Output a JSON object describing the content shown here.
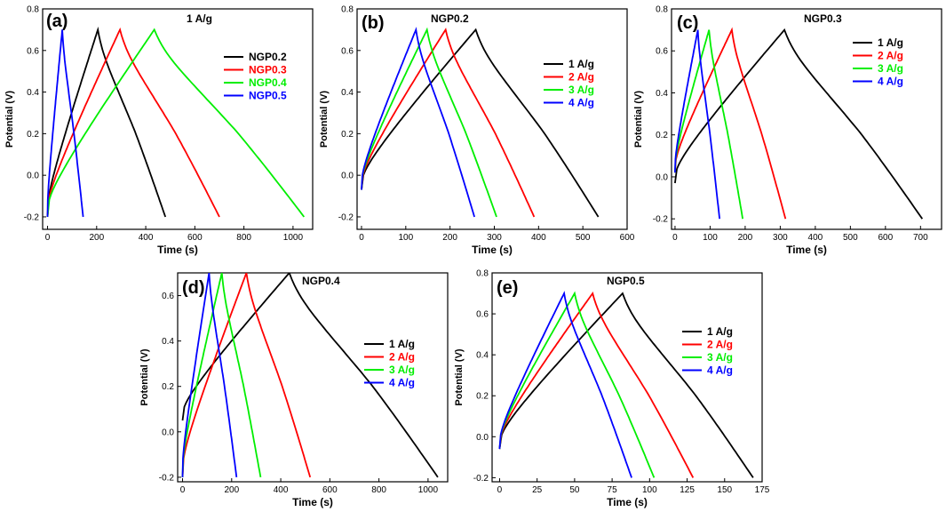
{
  "chart_data": [
    {
      "id": "a",
      "type": "line",
      "panel_label": "(a)",
      "title": "1 A/g",
      "xlabel": "Time (s)",
      "ylabel": "Potential (V)",
      "xlim": [
        -20,
        1080
      ],
      "ylim": [
        -0.26,
        0.8
      ],
      "xticks": [
        0,
        200,
        400,
        600,
        800,
        1000
      ],
      "yticks": [
        -0.2,
        0.0,
        0.2,
        0.4,
        0.6,
        0.8
      ],
      "xtick_labels": [
        "0",
        "200",
        "400",
        "600",
        "800",
        "1000"
      ],
      "ytick_labels": [
        "-0.2",
        "0.0",
        "0.2",
        "0.4",
        "0.6",
        "0.8"
      ],
      "series": [
        {
          "name": "NGP0.2",
          "color": "#000000",
          "t_charge": 205,
          "t_end": 480,
          "v_start": -0.2
        },
        {
          "name": "NGP0.3",
          "color": "#ff0000",
          "t_charge": 295,
          "t_end": 700,
          "v_start": -0.2
        },
        {
          "name": "NGP0.4",
          "color": "#00ee00",
          "t_charge": 435,
          "t_end": 1045,
          "v_start": -0.2
        },
        {
          "name": "NGP0.5",
          "color": "#0000ff",
          "t_charge": 60,
          "t_end": 145,
          "v_start": -0.2
        }
      ]
    },
    {
      "id": "b",
      "type": "line",
      "panel_label": "(b)",
      "title": "NGP0.2",
      "xlabel": "Time (s)",
      "ylabel": "Potential (V)",
      "xlim": [
        -10,
        600
      ],
      "ylim": [
        -0.26,
        0.8
      ],
      "xticks": [
        0,
        100,
        200,
        300,
        400,
        500,
        600
      ],
      "yticks": [
        -0.2,
        0.0,
        0.2,
        0.4,
        0.6,
        0.8
      ],
      "xtick_labels": [
        "0",
        "100",
        "200",
        "300",
        "400",
        "500",
        "600"
      ],
      "ytick_labels": [
        "-0.2",
        "0.0",
        "0.2",
        "0.4",
        "0.6",
        "0.8"
      ],
      "series": [
        {
          "name": "1 A/g",
          "color": "#000000",
          "t_charge": 258,
          "t_end": 535,
          "v_start": -0.07
        },
        {
          "name": "2 A/g",
          "color": "#ff0000",
          "t_charge": 190,
          "t_end": 390,
          "v_start": -0.07
        },
        {
          "name": "3 A/g",
          "color": "#00ee00",
          "t_charge": 148,
          "t_end": 305,
          "v_start": -0.07
        },
        {
          "name": "4 A/g",
          "color": "#0000ff",
          "t_charge": 123,
          "t_end": 255,
          "v_start": -0.07
        }
      ]
    },
    {
      "id": "c",
      "type": "line",
      "panel_label": "(c)",
      "title": "NGP0.3",
      "xlabel": "Time (s)",
      "ylabel": "Potential (V)",
      "xlim": [
        -10,
        760
      ],
      "ylim": [
        -0.25,
        0.8
      ],
      "xticks": [
        0,
        100,
        200,
        300,
        400,
        500,
        600,
        700
      ],
      "yticks": [
        -0.2,
        0.0,
        0.2,
        0.4,
        0.6,
        0.8
      ],
      "xtick_labels": [
        "0",
        "100",
        "200",
        "300",
        "400",
        "500",
        "600",
        "700"
      ],
      "ytick_labels": [
        "-0.2",
        "0.0",
        "0.2",
        "0.4",
        "0.6",
        "0.8"
      ],
      "series": [
        {
          "name": "1 A/g",
          "color": "#000000",
          "t_charge": 312,
          "t_end": 705,
          "v_start": -0.03
        },
        {
          "name": "2 A/g",
          "color": "#ff0000",
          "t_charge": 162,
          "t_end": 315,
          "v_start": 0.02
        },
        {
          "name": "3 A/g",
          "color": "#00ee00",
          "t_charge": 97,
          "t_end": 193,
          "v_start": 0.02
        },
        {
          "name": "4 A/g",
          "color": "#0000ff",
          "t_charge": 65,
          "t_end": 127,
          "v_start": 0.02
        }
      ]
    },
    {
      "id": "d",
      "type": "line",
      "panel_label": "(d)",
      "title": "NGP0.4",
      "xlabel": "Time (s)",
      "ylabel": "Potential (V)",
      "xlim": [
        -20,
        1080
      ],
      "ylim": [
        -0.22,
        0.7
      ],
      "xticks": [
        0,
        200,
        400,
        600,
        800,
        1000
      ],
      "yticks": [
        -0.2,
        0.0,
        0.2,
        0.4,
        0.6
      ],
      "xtick_labels": [
        "0",
        "200",
        "400",
        "600",
        "800",
        "1000"
      ],
      "ytick_labels": [
        "-0.2",
        "0.0",
        "0.2",
        "0.4",
        "0.6"
      ],
      "series": [
        {
          "name": "1 A/g",
          "color": "#000000",
          "t_charge": 435,
          "t_end": 1040,
          "v_start": 0.05
        },
        {
          "name": "2 A/g",
          "color": "#ff0000",
          "t_charge": 260,
          "t_end": 520,
          "v_start": -0.2
        },
        {
          "name": "3 A/g",
          "color": "#00ee00",
          "t_charge": 160,
          "t_end": 318,
          "v_start": -0.2
        },
        {
          "name": "4 A/g",
          "color": "#0000ff",
          "t_charge": 108,
          "t_end": 220,
          "v_start": -0.2
        }
      ]
    },
    {
      "id": "e",
      "type": "line",
      "panel_label": "(e)",
      "title": "NGP0.5",
      "xlabel": "Time (s)",
      "ylabel": "Potential (V)",
      "xlim": [
        -5,
        175
      ],
      "ylim": [
        -0.22,
        0.8
      ],
      "xticks": [
        0,
        25,
        50,
        75,
        100,
        125,
        150,
        175
      ],
      "yticks": [
        -0.2,
        0.0,
        0.2,
        0.4,
        0.6,
        0.8
      ],
      "xtick_labels": [
        "0",
        "25",
        "50",
        "75",
        "100",
        "125",
        "150",
        "175"
      ],
      "ytick_labels": [
        "-0.2",
        "0.0",
        "0.2",
        "0.4",
        "0.6",
        "0.8"
      ],
      "series": [
        {
          "name": "1 A/g",
          "color": "#000000",
          "t_charge": 82,
          "t_end": 169,
          "v_start": -0.06
        },
        {
          "name": "2 A/g",
          "color": "#ff0000",
          "t_charge": 62,
          "t_end": 129,
          "v_start": -0.06
        },
        {
          "name": "3 A/g",
          "color": "#00ee00",
          "t_charge": 50,
          "t_end": 103,
          "v_start": -0.06
        },
        {
          "name": "4 A/g",
          "color": "#0000ff",
          "t_charge": 43,
          "t_end": 88,
          "v_start": -0.06
        }
      ]
    }
  ],
  "common": {
    "v_max": 0.7,
    "v_min": -0.2
  }
}
